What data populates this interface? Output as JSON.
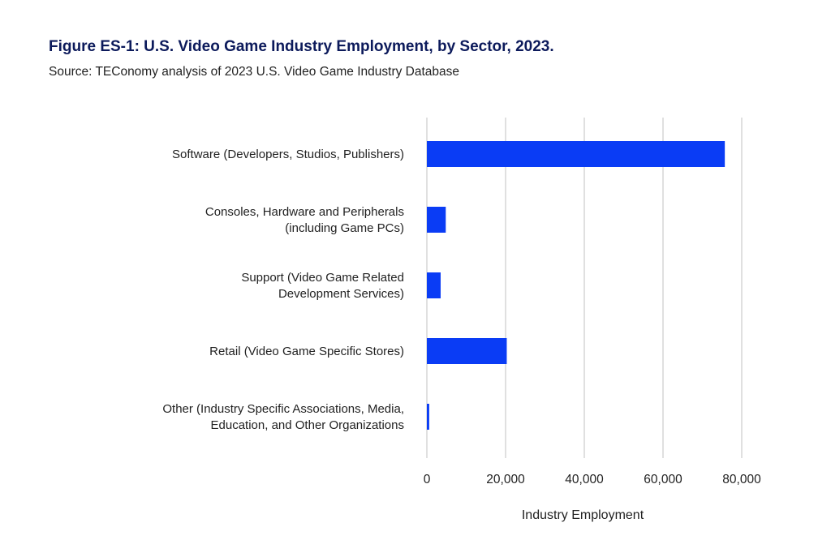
{
  "header": {
    "title": "Figure ES-1: U.S. Video Game Industry Employment, by Sector, 2023.",
    "subtitle": "Source: TEConomy analysis of 2023 U.S. Video Game Industry Database"
  },
  "chart_data": {
    "type": "bar",
    "orientation": "horizontal",
    "categories": [
      [
        "Software (Developers, Studios, Publishers)"
      ],
      [
        "Consoles, Hardware and Peripherals",
        "(including Game PCs)"
      ],
      [
        "Support (Video Game Related",
        "Development Services)"
      ],
      [
        "Retail (Video Game Specific Stores)"
      ],
      [
        "Other (Industry Specific Associations, Media,",
        "Education, and Other Organizations"
      ]
    ],
    "values": [
      75700,
      4800,
      3500,
      20300,
      600
    ],
    "xlabel": "Industry Employment",
    "ylabel": "",
    "xlim": [
      0,
      80000
    ],
    "xticks": [
      0,
      20000,
      40000,
      60000,
      80000
    ],
    "xtick_labels": [
      "0",
      "20,000",
      "40,000",
      "60,000",
      "80,000"
    ],
    "grid": "vertical",
    "colors": {
      "bar": "#0a3cf5",
      "grid": "#cccccc"
    }
  }
}
